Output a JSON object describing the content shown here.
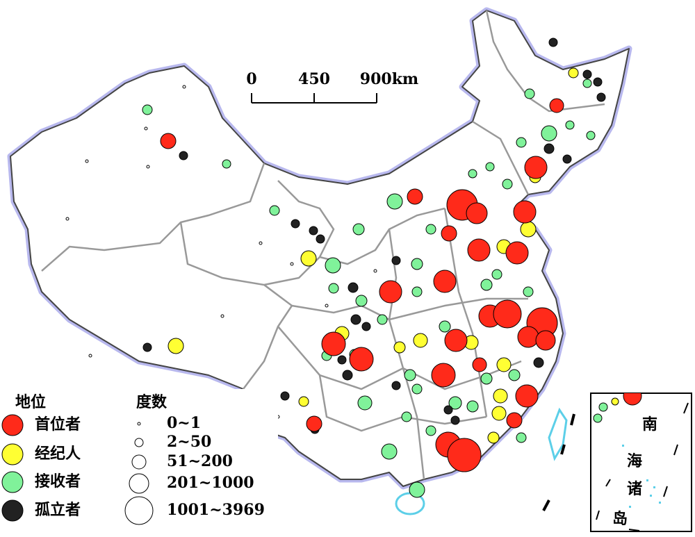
{
  "scale_bar": {
    "labels": [
      "0",
      "450",
      "900km"
    ]
  },
  "legend": {
    "status": {
      "title": "地位",
      "items": [
        "首位者",
        "经纪人",
        "接收者",
        "孤立者"
      ]
    },
    "degree": {
      "title": "度数",
      "items": [
        "0~1",
        "2~50",
        "51~200",
        "201~1000",
        "1001~3969"
      ]
    }
  },
  "inset": {
    "label": [
      "南",
      "海",
      "诸",
      "岛"
    ]
  }
}
